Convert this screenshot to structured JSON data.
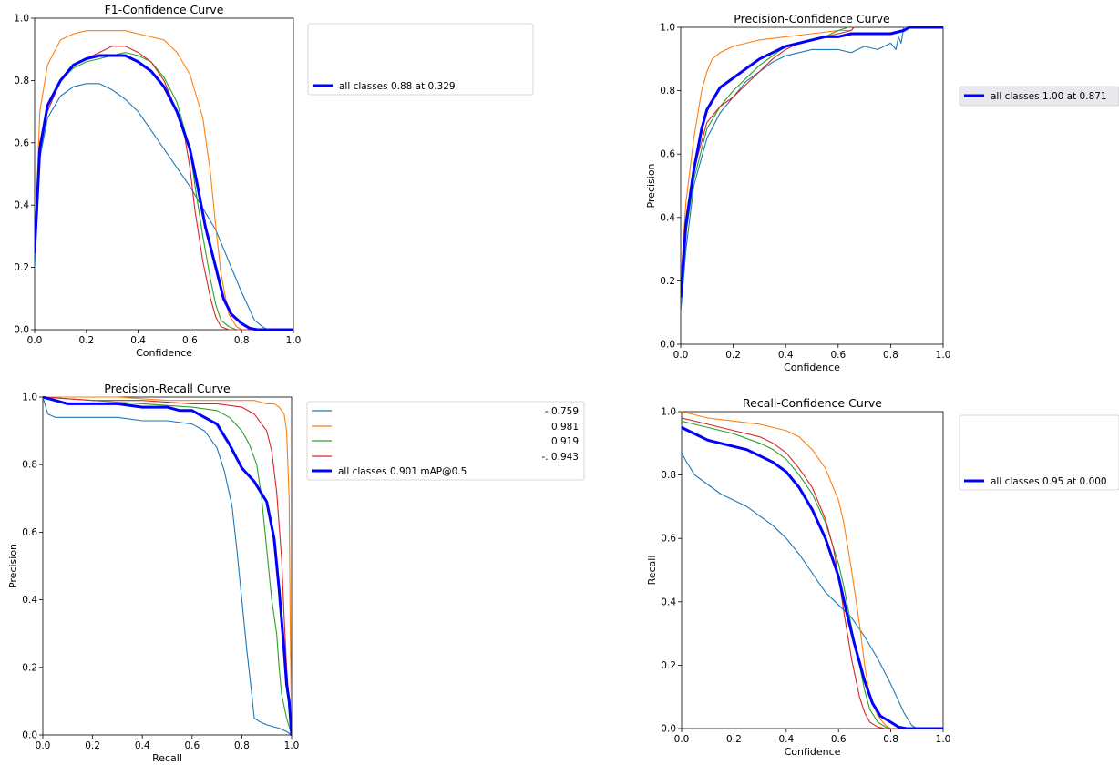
{
  "colors": {
    "series": [
      "#1f77b4",
      "#ff7f0e",
      "#2ca02c",
      "#d62728"
    ],
    "all": "#0000ff"
  },
  "chart_data": [
    {
      "id": "f1",
      "type": "line",
      "title": "F1-Confidence Curve",
      "xlabel": "Confidence",
      "ylabel": "",
      "xlim": [
        0,
        1
      ],
      "ylim": [
        0,
        1
      ],
      "xticks": [
        "0.0",
        "0.2",
        "0.4",
        "0.6",
        "0.8",
        "1.0"
      ],
      "yticks": [
        "0.0",
        "0.2",
        "0.4",
        "0.6",
        "0.8",
        "1.0"
      ],
      "legend_position": "outside-right",
      "legend": [
        {
          "label": "all classes 0.88 at 0.329",
          "series": 4
        }
      ],
      "series": [
        {
          "x": [
            0,
            0.02,
            0.05,
            0.1,
            0.15,
            0.2,
            0.25,
            0.3,
            0.35,
            0.4,
            0.45,
            0.5,
            0.55,
            0.6,
            0.65,
            0.7,
            0.75,
            0.8,
            0.85,
            0.88,
            0.9,
            1.0
          ],
          "y": [
            0.2,
            0.55,
            0.68,
            0.75,
            0.78,
            0.79,
            0.79,
            0.77,
            0.74,
            0.7,
            0.64,
            0.58,
            0.52,
            0.46,
            0.39,
            0.32,
            0.22,
            0.12,
            0.03,
            0.01,
            0,
            0
          ]
        },
        {
          "x": [
            0,
            0.02,
            0.05,
            0.1,
            0.15,
            0.2,
            0.25,
            0.3,
            0.35,
            0.4,
            0.45,
            0.5,
            0.55,
            0.6,
            0.65,
            0.68,
            0.7,
            0.72,
            0.75,
            0.78,
            0.8,
            0.82,
            1.0
          ],
          "y": [
            0.25,
            0.7,
            0.85,
            0.93,
            0.95,
            0.96,
            0.96,
            0.96,
            0.96,
            0.95,
            0.94,
            0.93,
            0.89,
            0.82,
            0.68,
            0.5,
            0.33,
            0.18,
            0.05,
            0.01,
            0,
            0,
            0
          ]
        },
        {
          "x": [
            0,
            0.02,
            0.05,
            0.1,
            0.15,
            0.2,
            0.25,
            0.3,
            0.35,
            0.4,
            0.45,
            0.5,
            0.55,
            0.6,
            0.62,
            0.65,
            0.68,
            0.7,
            0.72,
            0.75,
            0.78,
            1.0
          ],
          "y": [
            0.25,
            0.6,
            0.72,
            0.8,
            0.84,
            0.86,
            0.87,
            0.88,
            0.89,
            0.88,
            0.86,
            0.81,
            0.73,
            0.58,
            0.46,
            0.3,
            0.16,
            0.08,
            0.03,
            0.01,
            0,
            0
          ]
        },
        {
          "x": [
            0,
            0.02,
            0.05,
            0.1,
            0.15,
            0.2,
            0.25,
            0.3,
            0.35,
            0.4,
            0.45,
            0.5,
            0.55,
            0.58,
            0.6,
            0.62,
            0.65,
            0.68,
            0.7,
            0.72,
            0.75,
            1.0
          ],
          "y": [
            0.25,
            0.6,
            0.7,
            0.8,
            0.85,
            0.87,
            0.89,
            0.91,
            0.91,
            0.89,
            0.86,
            0.8,
            0.7,
            0.62,
            0.52,
            0.38,
            0.22,
            0.1,
            0.04,
            0.01,
            0,
            0
          ]
        },
        {
          "x": [
            0,
            0.02,
            0.05,
            0.1,
            0.15,
            0.2,
            0.25,
            0.3,
            0.329,
            0.35,
            0.4,
            0.45,
            0.5,
            0.55,
            0.6,
            0.63,
            0.66,
            0.7,
            0.73,
            0.76,
            0.8,
            0.83,
            0.86,
            1.0
          ],
          "y": [
            0.25,
            0.58,
            0.72,
            0.8,
            0.85,
            0.87,
            0.88,
            0.88,
            0.88,
            0.88,
            0.86,
            0.83,
            0.78,
            0.7,
            0.58,
            0.46,
            0.33,
            0.2,
            0.1,
            0.05,
            0.02,
            0.005,
            0,
            0
          ]
        }
      ]
    },
    {
      "id": "precision-conf",
      "type": "line",
      "title": "Precision-Confidence Curve",
      "xlabel": "Confidence",
      "ylabel": "Precision",
      "xlim": [
        0,
        1
      ],
      "ylim": [
        0,
        1
      ],
      "xticks": [
        "0.0",
        "0.2",
        "0.4",
        "0.6",
        "0.8",
        "1.0"
      ],
      "yticks": [
        "0.0",
        "0.2",
        "0.4",
        "0.6",
        "0.8",
        "1.0"
      ],
      "legend_position": "outside-right",
      "legend": [
        {
          "label": "all classes 1.00 at 0.871",
          "series": 4
        }
      ],
      "series": [
        {
          "x": [
            0,
            0.02,
            0.05,
            0.1,
            0.15,
            0.2,
            0.25,
            0.3,
            0.35,
            0.4,
            0.45,
            0.5,
            0.55,
            0.6,
            0.65,
            0.7,
            0.75,
            0.8,
            0.82,
            0.83,
            0.84,
            0.85,
            1.0
          ],
          "y": [
            0.1,
            0.3,
            0.5,
            0.65,
            0.73,
            0.78,
            0.83,
            0.86,
            0.89,
            0.91,
            0.92,
            0.93,
            0.93,
            0.93,
            0.92,
            0.94,
            0.93,
            0.95,
            0.93,
            0.97,
            0.95,
            1.0,
            1.0
          ]
        },
        {
          "x": [
            0,
            0.02,
            0.05,
            0.08,
            0.1,
            0.12,
            0.15,
            0.2,
            0.3,
            0.4,
            0.5,
            0.6,
            0.65,
            0.66
          ],
          "y": [
            0.2,
            0.45,
            0.65,
            0.8,
            0.86,
            0.9,
            0.92,
            0.94,
            0.96,
            0.97,
            0.98,
            0.99,
            0.99,
            1.0
          ]
        },
        {
          "x": [
            0,
            0.02,
            0.05,
            0.1,
            0.15,
            0.2,
            0.25,
            0.3,
            0.35,
            0.4,
            0.45,
            0.5,
            0.55,
            0.6,
            0.64
          ],
          "y": [
            0.15,
            0.35,
            0.52,
            0.68,
            0.75,
            0.8,
            0.84,
            0.88,
            0.91,
            0.94,
            0.95,
            0.96,
            0.97,
            0.99,
            1.0
          ]
        },
        {
          "x": [
            0,
            0.02,
            0.05,
            0.1,
            0.15,
            0.2,
            0.25,
            0.3,
            0.35,
            0.4,
            0.45,
            0.5,
            0.55,
            0.6,
            0.65,
            0.66
          ],
          "y": [
            0.15,
            0.36,
            0.55,
            0.7,
            0.75,
            0.78,
            0.82,
            0.86,
            0.9,
            0.93,
            0.95,
            0.96,
            0.97,
            0.98,
            0.99,
            1.0
          ]
        },
        {
          "x": [
            0,
            0.02,
            0.05,
            0.08,
            0.1,
            0.15,
            0.2,
            0.25,
            0.3,
            0.35,
            0.4,
            0.45,
            0.5,
            0.55,
            0.6,
            0.65,
            0.7,
            0.75,
            0.8,
            0.85,
            0.871,
            1.0
          ],
          "y": [
            0.15,
            0.38,
            0.55,
            0.68,
            0.74,
            0.81,
            0.84,
            0.87,
            0.9,
            0.92,
            0.94,
            0.95,
            0.96,
            0.97,
            0.97,
            0.98,
            0.98,
            0.98,
            0.98,
            0.99,
            1.0,
            1.0
          ]
        }
      ]
    },
    {
      "id": "pr",
      "type": "line",
      "title": "Precision-Recall Curve",
      "xlabel": "Recall",
      "ylabel": "Precision",
      "xlim": [
        0,
        1
      ],
      "ylim": [
        0,
        1
      ],
      "xticks": [
        "0.0",
        "0.2",
        "0.4",
        "0.6",
        "0.8",
        "1.0"
      ],
      "yticks": [
        "0.0",
        "0.2",
        "0.4",
        "0.6",
        "0.8",
        "1.0"
      ],
      "legend_position": "outside-right",
      "legend": [
        {
          "label": "- 0.759",
          "series": 0
        },
        {
          "label": "0.981",
          "series": 1
        },
        {
          "label": "0.919",
          "series": 2
        },
        {
          "label": "-. 0.943",
          "series": 3
        },
        {
          "label": "all classes 0.901 mAP@0.5",
          "series": 4
        }
      ],
      "series": [
        {
          "x": [
            0,
            0.02,
            0.05,
            0.1,
            0.2,
            0.3,
            0.4,
            0.5,
            0.6,
            0.65,
            0.7,
            0.73,
            0.76,
            0.78,
            0.8,
            0.82,
            0.84,
            0.85,
            0.87,
            0.9,
            0.95,
            0.98,
            1.0
          ],
          "y": [
            1.0,
            0.95,
            0.94,
            0.94,
            0.94,
            0.94,
            0.93,
            0.93,
            0.92,
            0.9,
            0.85,
            0.78,
            0.68,
            0.55,
            0.4,
            0.25,
            0.12,
            0.05,
            0.04,
            0.03,
            0.02,
            0.01,
            0
          ]
        },
        {
          "x": [
            0,
            0.1,
            0.3,
            0.5,
            0.7,
            0.8,
            0.85,
            0.9,
            0.93,
            0.95,
            0.97,
            0.98,
            0.99,
            0.995,
            1.0
          ],
          "y": [
            1.0,
            1.0,
            1.0,
            0.99,
            0.99,
            0.99,
            0.99,
            0.98,
            0.98,
            0.97,
            0.95,
            0.9,
            0.7,
            0.3,
            0
          ]
        },
        {
          "x": [
            0,
            0.2,
            0.4,
            0.6,
            0.7,
            0.75,
            0.8,
            0.83,
            0.86,
            0.88,
            0.9,
            0.92,
            0.94,
            0.95,
            0.96,
            0.98,
            1.0
          ],
          "y": [
            1.0,
            0.99,
            0.98,
            0.97,
            0.96,
            0.94,
            0.9,
            0.86,
            0.8,
            0.7,
            0.55,
            0.4,
            0.3,
            0.2,
            0.12,
            0.05,
            0
          ]
        },
        {
          "x": [
            0,
            0.2,
            0.4,
            0.6,
            0.7,
            0.8,
            0.85,
            0.9,
            0.92,
            0.94,
            0.96,
            0.97,
            0.98,
            0.99,
            1.0
          ],
          "y": [
            1.0,
            0.99,
            0.99,
            0.98,
            0.98,
            0.97,
            0.95,
            0.9,
            0.84,
            0.72,
            0.52,
            0.35,
            0.2,
            0.1,
            0
          ]
        },
        {
          "x": [
            0,
            0.05,
            0.1,
            0.2,
            0.3,
            0.4,
            0.5,
            0.55,
            0.6,
            0.65,
            0.7,
            0.75,
            0.8,
            0.85,
            0.9,
            0.93,
            0.95,
            0.97,
            0.98,
            0.99,
            1.0
          ],
          "y": [
            1.0,
            0.99,
            0.98,
            0.98,
            0.98,
            0.97,
            0.97,
            0.96,
            0.96,
            0.94,
            0.92,
            0.86,
            0.79,
            0.75,
            0.69,
            0.58,
            0.43,
            0.25,
            0.15,
            0.1,
            0
          ]
        }
      ]
    },
    {
      "id": "recall-conf",
      "type": "line",
      "title": "Recall-Confidence Curve",
      "xlabel": "Confidence",
      "ylabel": "Recall",
      "xlim": [
        0,
        1
      ],
      "ylim": [
        0,
        1
      ],
      "xticks": [
        "0.0",
        "0.2",
        "0.4",
        "0.6",
        "0.8",
        "1.0"
      ],
      "yticks": [
        "0.0",
        "0.2",
        "0.4",
        "0.6",
        "0.8",
        "1.0"
      ],
      "legend_position": "outside-right",
      "legend": [
        {
          "label": "all classes 0.95 at 0.000",
          "series": 4
        }
      ],
      "series": [
        {
          "x": [
            0,
            0.02,
            0.05,
            0.1,
            0.15,
            0.2,
            0.25,
            0.3,
            0.35,
            0.4,
            0.45,
            0.5,
            0.55,
            0.6,
            0.65,
            0.7,
            0.75,
            0.8,
            0.85,
            0.88,
            0.9,
            1.0
          ],
          "y": [
            0.87,
            0.84,
            0.8,
            0.77,
            0.74,
            0.72,
            0.7,
            0.67,
            0.64,
            0.6,
            0.55,
            0.49,
            0.43,
            0.39,
            0.35,
            0.29,
            0.22,
            0.14,
            0.05,
            0.01,
            0,
            0
          ]
        },
        {
          "x": [
            0,
            0.05,
            0.1,
            0.2,
            0.3,
            0.35,
            0.4,
            0.45,
            0.5,
            0.55,
            0.6,
            0.62,
            0.65,
            0.68,
            0.7,
            0.72,
            0.75,
            0.78,
            0.8,
            0.82,
            1.0
          ],
          "y": [
            1.0,
            0.99,
            0.98,
            0.97,
            0.96,
            0.95,
            0.94,
            0.92,
            0.88,
            0.82,
            0.72,
            0.65,
            0.5,
            0.33,
            0.2,
            0.1,
            0.04,
            0.01,
            0,
            0,
            0
          ]
        },
        {
          "x": [
            0,
            0.05,
            0.1,
            0.2,
            0.3,
            0.35,
            0.4,
            0.45,
            0.5,
            0.55,
            0.6,
            0.62,
            0.65,
            0.68,
            0.7,
            0.72,
            0.75,
            0.78,
            0.8,
            1.0
          ],
          "y": [
            0.97,
            0.96,
            0.95,
            0.93,
            0.9,
            0.88,
            0.85,
            0.8,
            0.74,
            0.65,
            0.52,
            0.45,
            0.32,
            0.2,
            0.12,
            0.06,
            0.02,
            0.005,
            0,
            0
          ]
        },
        {
          "x": [
            0,
            0.05,
            0.1,
            0.2,
            0.3,
            0.35,
            0.4,
            0.45,
            0.5,
            0.55,
            0.58,
            0.6,
            0.62,
            0.65,
            0.68,
            0.7,
            0.72,
            0.75,
            0.78,
            1.0
          ],
          "y": [
            0.98,
            0.97,
            0.96,
            0.94,
            0.92,
            0.9,
            0.87,
            0.82,
            0.76,
            0.66,
            0.57,
            0.48,
            0.37,
            0.22,
            0.1,
            0.05,
            0.02,
            0.005,
            0,
            0
          ]
        },
        {
          "x": [
            0,
            0.05,
            0.1,
            0.15,
            0.2,
            0.25,
            0.3,
            0.35,
            0.4,
            0.45,
            0.5,
            0.55,
            0.6,
            0.63,
            0.66,
            0.7,
            0.73,
            0.76,
            0.8,
            0.83,
            0.86,
            1.0
          ],
          "y": [
            0.95,
            0.93,
            0.91,
            0.9,
            0.89,
            0.88,
            0.86,
            0.84,
            0.81,
            0.76,
            0.69,
            0.6,
            0.48,
            0.37,
            0.27,
            0.15,
            0.08,
            0.04,
            0.02,
            0.005,
            0,
            0
          ]
        }
      ]
    }
  ]
}
